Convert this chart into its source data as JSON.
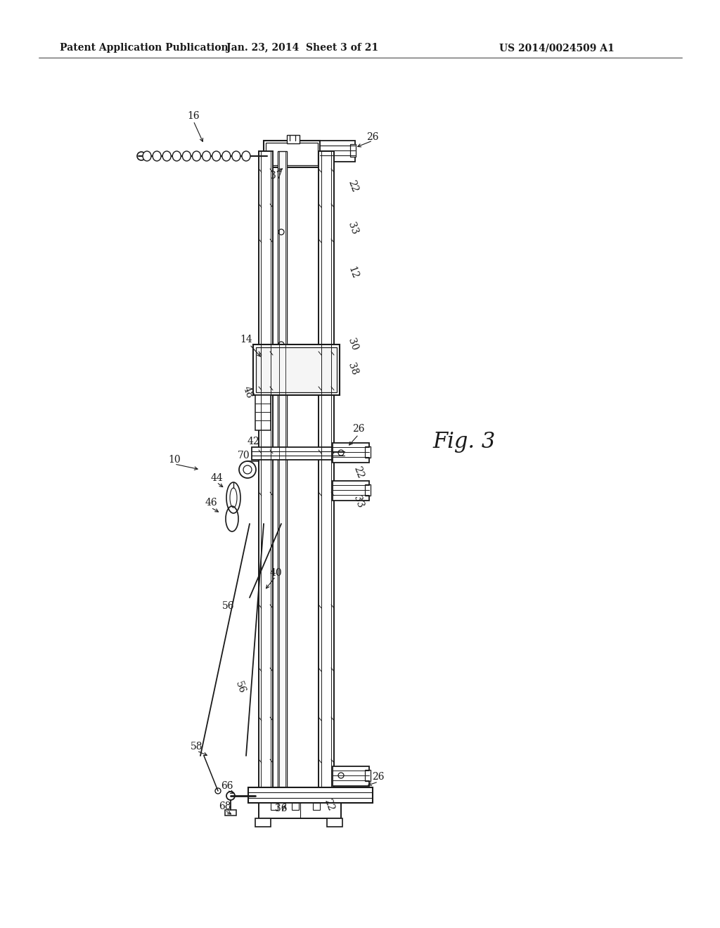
{
  "bg_color": "#ffffff",
  "header_left": "Patent Application Publication",
  "header_mid": "Jan. 23, 2014  Sheet 3 of 21",
  "header_right": "US 2014/0024509 A1",
  "fig_label": "Fig. 3",
  "header_fontsize": 10,
  "label_fontsize": 10,
  "fig3_fontsize": 22
}
